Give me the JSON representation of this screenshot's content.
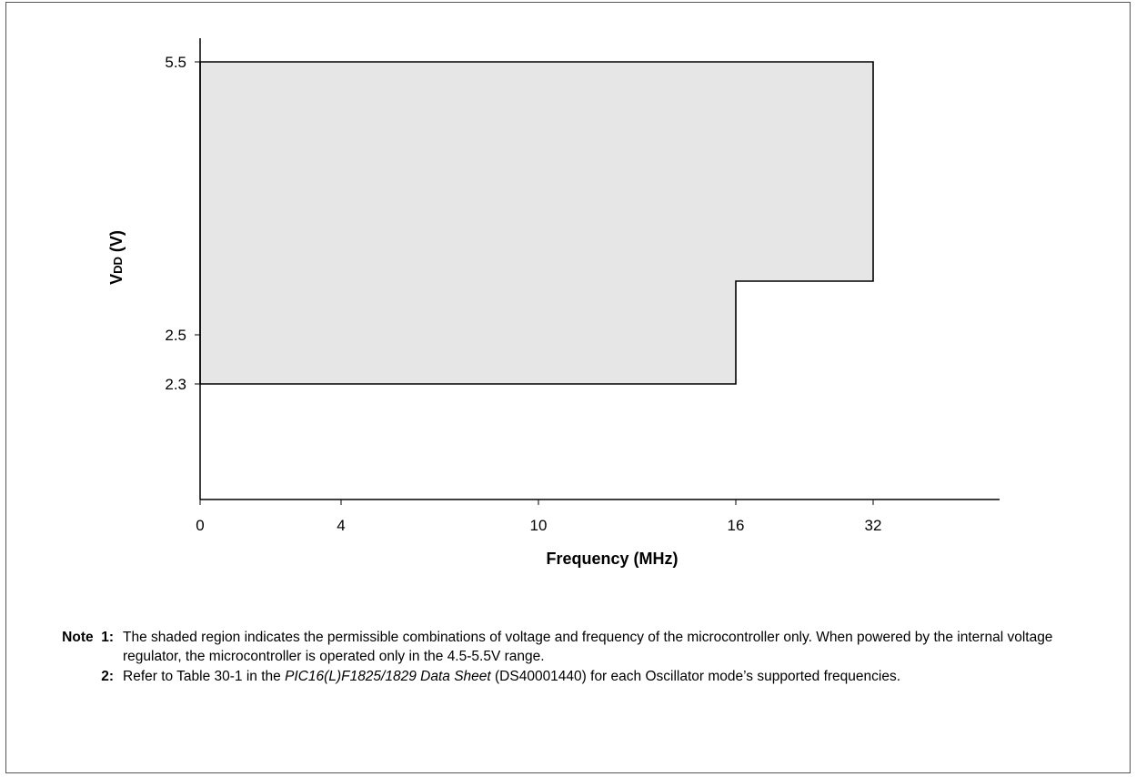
{
  "chart_data": {
    "type": "area",
    "title": "",
    "xlabel": "Frequency (MHz)",
    "ylabel_main": "V",
    "ylabel_sub": "DD",
    "ylabel_tail": " (V)",
    "x_ticks": [
      "0",
      "4",
      "10",
      "16",
      "32"
    ],
    "y_ticks": [
      "2.3",
      "2.5",
      "5.5"
    ],
    "region": {
      "description_points": [
        {
          "x": "0",
          "y": 2.3
        },
        {
          "x": "16",
          "y": 2.3
        },
        {
          "x": "16",
          "y": 3.6
        },
        {
          "x": "32",
          "y": 3.6
        },
        {
          "x": "32",
          "y": 5.5
        },
        {
          "x": "0",
          "y": 5.5
        }
      ]
    },
    "fill_color": "#e6e6e6",
    "line_color": "#000000",
    "grid": false
  },
  "notes": {
    "note1_key": "Note  1:",
    "note1_text": "The shaded region indicates the permissible combinations of voltage and frequency of the microcontroller only. When powered by the internal voltage regulator, the microcontroller is operated only in the 4.5-5.5V range.",
    "note2_key": "2:",
    "note2_pre": "Refer to Table 30-1 in the ",
    "note2_italic": "PIC16(L)F1825/1829 Data Sheet",
    "note2_post": " (DS40001440) for each Oscillator mode’s supported frequencies."
  }
}
